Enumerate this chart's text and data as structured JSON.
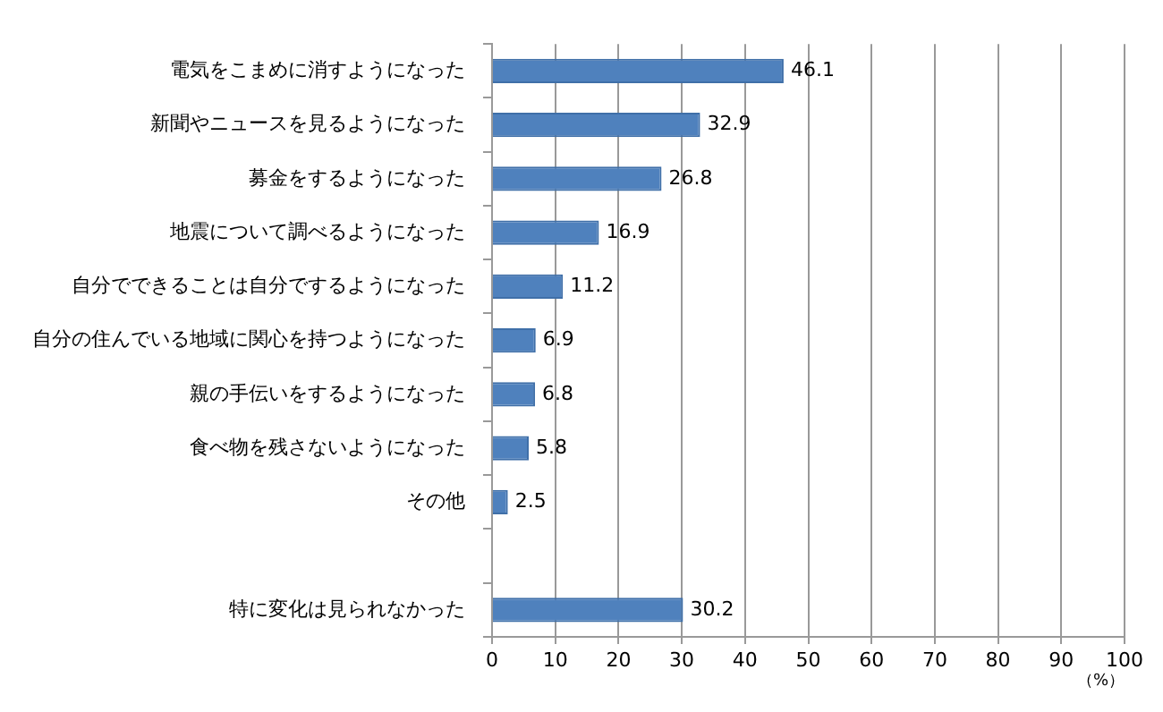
{
  "chart_data": {
    "type": "bar",
    "orientation": "horizontal",
    "xlabel": "（%）",
    "categories": [
      "電気をこまめに消すようになった",
      "新聞やニュースを見るようになった",
      "募金をするようになった",
      "地震について調べるようになった",
      "自分でできることは自分でするようになった",
      "自分の住んでいる地域に関心を持つようになった",
      "親の手伝いをするようになった",
      "食べ物を残さないようになった",
      "その他",
      null,
      "特に変化は見られなかった"
    ],
    "values": [
      46.1,
      32.9,
      26.8,
      16.9,
      11.2,
      6.9,
      6.8,
      5.8,
      2.5,
      null,
      30.2
    ],
    "color": "#4f81bd",
    "xlim": [
      0,
      100
    ],
    "xticks": [
      0,
      10,
      20,
      30,
      40,
      50,
      60,
      70,
      80,
      90,
      100
    ],
    "grid": "x",
    "data_labels": true,
    "legend": false
  }
}
